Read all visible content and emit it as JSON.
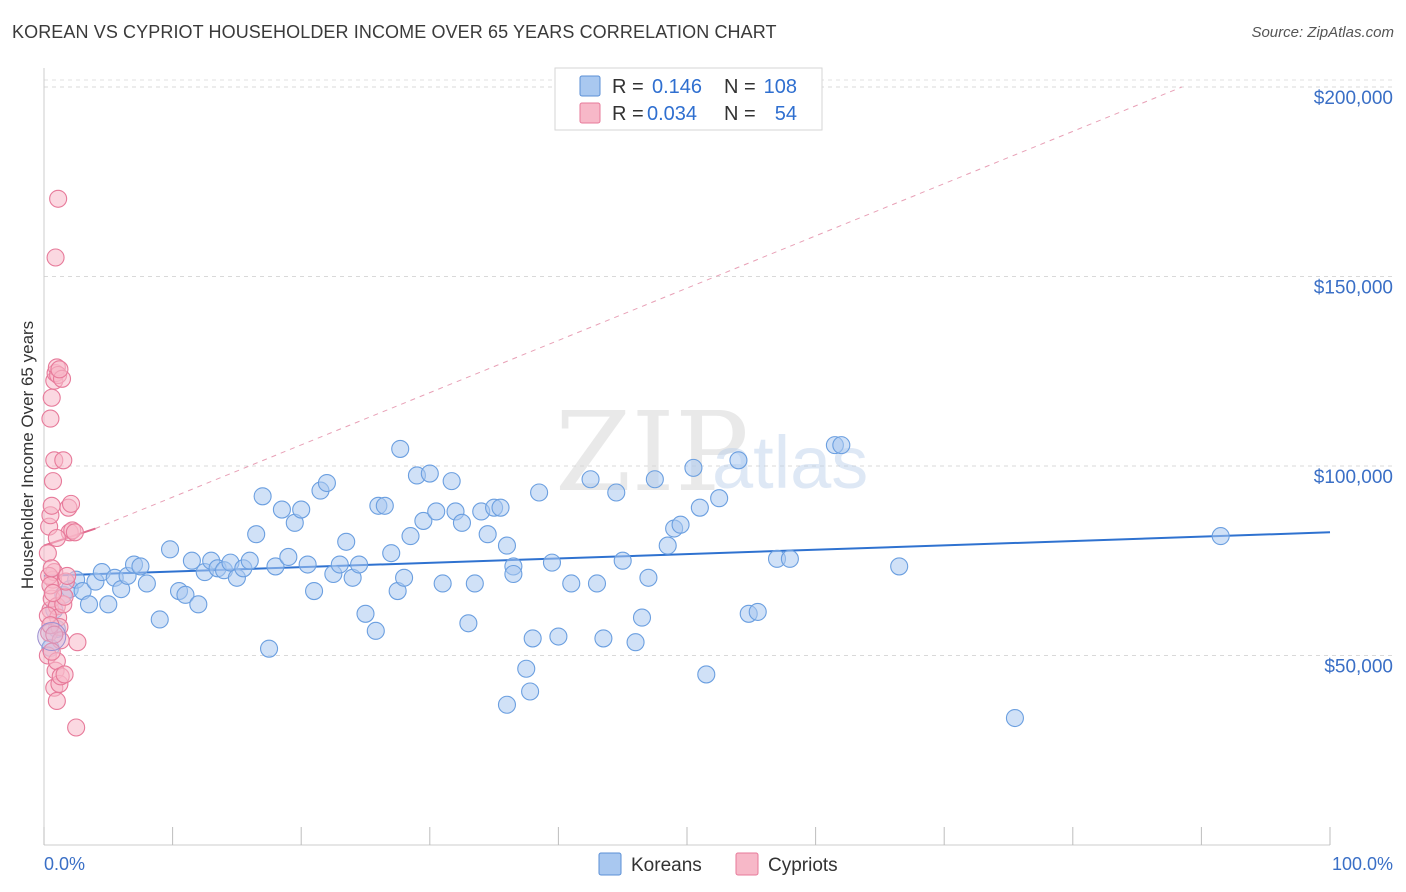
{
  "title": "KOREAN VS CYPRIOT HOUSEHOLDER INCOME OVER 65 YEARS CORRELATION CHART",
  "source": "Source: ZipAtlas.com",
  "watermark": {
    "zip": "ZIP",
    "atlas": "atlas"
  },
  "legend": {
    "rows": [
      {
        "r_label": "R =",
        "r_value": "0.146",
        "n_label": "N =",
        "n_value": "108",
        "color": "#a9c8f0",
        "edge": "#5b8fd6"
      },
      {
        "r_label": "R =",
        "r_value": "0.034",
        "n_label": "N =",
        "n_value": "54",
        "color": "#f7b8c8",
        "edge": "#e77a9a"
      }
    ]
  },
  "bottom_legend": [
    {
      "label": "Koreans",
      "color": "#a9c8f0",
      "edge": "#5b8fd6"
    },
    {
      "label": "Cypriots",
      "color": "#f7b8c8",
      "edge": "#e77a9a"
    }
  ],
  "chart_data": {
    "type": "scatter",
    "title": "KOREAN VS CYPRIOT HOUSEHOLDER INCOME OVER 65 YEARS CORRELATION CHART",
    "xlabel": "",
    "ylabel": "Householder Income Over 65 years",
    "xlim": [
      0,
      100
    ],
    "ylim": [
      0,
      205000
    ],
    "x_tick_labels": [
      "0.0%",
      "100.0%"
    ],
    "y_ticks": [
      50000,
      100000,
      150000,
      200000
    ],
    "y_tick_labels": [
      "$50,000",
      "$100,000",
      "$150,000",
      "$200,000"
    ],
    "grid": true,
    "series": [
      {
        "name": "Koreans",
        "color": "#6b9fe0",
        "fill": "#a9c8f0",
        "trend": {
          "x": [
            0,
            100
          ],
          "y": [
            71000,
            82500
          ],
          "style": "solid",
          "color": "#2f72d0"
        },
        "points": [
          [
            0.5,
            52000
          ],
          [
            0.8,
            62000
          ],
          [
            1.0,
            57000
          ],
          [
            1.5,
            66000
          ],
          [
            2.0,
            67500
          ],
          [
            2.5,
            70000
          ],
          [
            3.0,
            67000
          ],
          [
            3.5,
            63500
          ],
          [
            4.0,
            69500
          ],
          [
            4.5,
            72000
          ],
          [
            5.0,
            63500
          ],
          [
            5.5,
            70500
          ],
          [
            6.0,
            67500
          ],
          [
            6.5,
            71000
          ],
          [
            7.0,
            74000
          ],
          [
            7.5,
            73500
          ],
          [
            8.0,
            69000
          ],
          [
            9.0,
            59500
          ],
          [
            9.8,
            78000
          ],
          [
            10.5,
            67000
          ],
          [
            11.0,
            66000
          ],
          [
            11.5,
            75000
          ],
          [
            12.0,
            63500
          ],
          [
            12.5,
            72000
          ],
          [
            13.0,
            75000
          ],
          [
            13.5,
            73000
          ],
          [
            14.0,
            72500
          ],
          [
            14.5,
            74500
          ],
          [
            15.0,
            70500
          ],
          [
            15.5,
            73000
          ],
          [
            16.0,
            75000
          ],
          [
            16.5,
            82000
          ],
          [
            17.0,
            92000
          ],
          [
            17.5,
            51800
          ],
          [
            18.0,
            73500
          ],
          [
            18.5,
            88500
          ],
          [
            19.0,
            76000
          ],
          [
            19.5,
            85000
          ],
          [
            20.0,
            88500
          ],
          [
            20.5,
            74000
          ],
          [
            21.0,
            67000
          ],
          [
            21.5,
            93500
          ],
          [
            22.0,
            95500
          ],
          [
            22.5,
            71500
          ],
          [
            23.0,
            74000
          ],
          [
            23.5,
            80000
          ],
          [
            24.0,
            70500
          ],
          [
            24.5,
            74000
          ],
          [
            25.0,
            61000
          ],
          [
            25.8,
            56500
          ],
          [
            26.0,
            89500
          ],
          [
            26.5,
            89500
          ],
          [
            27.0,
            77000
          ],
          [
            27.5,
            67000
          ],
          [
            27.7,
            104500
          ],
          [
            28.0,
            70500
          ],
          [
            28.5,
            81500
          ],
          [
            29.0,
            97500
          ],
          [
            29.5,
            85500
          ],
          [
            30.0,
            98000
          ],
          [
            30.5,
            88000
          ],
          [
            31.0,
            69000
          ],
          [
            31.7,
            96000
          ],
          [
            32.0,
            88000
          ],
          [
            32.5,
            85000
          ],
          [
            33.0,
            58500
          ],
          [
            33.5,
            69000
          ],
          [
            34.0,
            88000
          ],
          [
            34.5,
            82000
          ],
          [
            35.0,
            89000
          ],
          [
            35.5,
            89000
          ],
          [
            36.0,
            79000
          ],
          [
            36.5,
            73500
          ],
          [
            36.5,
            71500
          ],
          [
            36.0,
            37000
          ],
          [
            37.5,
            46500
          ],
          [
            37.8,
            40500
          ],
          [
            38.0,
            54500
          ],
          [
            38.5,
            93000
          ],
          [
            39.5,
            74500
          ],
          [
            40.0,
            55000
          ],
          [
            41.0,
            69000
          ],
          [
            42.5,
            96500
          ],
          [
            43.0,
            69000
          ],
          [
            43.5,
            54500
          ],
          [
            44.5,
            93000
          ],
          [
            45.0,
            75000
          ],
          [
            46.0,
            53500
          ],
          [
            46.5,
            60000
          ],
          [
            47.0,
            70500
          ],
          [
            47.5,
            96500
          ],
          [
            48.5,
            79000
          ],
          [
            49.0,
            83500
          ],
          [
            49.5,
            84500
          ],
          [
            50.5,
            99500
          ],
          [
            51.0,
            89000
          ],
          [
            51.5,
            45000
          ],
          [
            52.5,
            91500
          ],
          [
            54.0,
            101500
          ],
          [
            54.8,
            61000
          ],
          [
            55.5,
            61500
          ],
          [
            57.0,
            75500
          ],
          [
            58.0,
            75500
          ],
          [
            61.5,
            105500
          ],
          [
            62.0,
            105500
          ],
          [
            66.5,
            73500
          ],
          [
            75.5,
            33500
          ],
          [
            91.5,
            81500
          ]
        ]
      },
      {
        "name": "Cypriots",
        "color": "#e77a9a",
        "fill": "#f7b8c8",
        "trend": {
          "x": [
            0,
            4
          ],
          "y": [
            79000,
            83500
          ],
          "style": "solid",
          "color": "#e06a8e",
          "extension": {
            "x": [
              4,
              88.5
            ],
            "y": [
              83500,
              200000
            ],
            "style": "dashed"
          }
        },
        "points": [
          [
            0.3,
            50000
          ],
          [
            0.4,
            56000
          ],
          [
            0.5,
            62000
          ],
          [
            0.6,
            65000
          ],
          [
            0.7,
            70000
          ],
          [
            0.8,
            72000
          ],
          [
            0.3,
            77000
          ],
          [
            0.4,
            84000
          ],
          [
            0.5,
            87000
          ],
          [
            0.6,
            89500
          ],
          [
            0.7,
            96000
          ],
          [
            0.8,
            101500
          ],
          [
            0.5,
            112500
          ],
          [
            0.6,
            118000
          ],
          [
            0.8,
            122500
          ],
          [
            0.9,
            124500
          ],
          [
            1.0,
            126000
          ],
          [
            1.1,
            124000
          ],
          [
            1.0,
            63000
          ],
          [
            1.1,
            60000
          ],
          [
            1.2,
            57500
          ],
          [
            1.3,
            54000
          ],
          [
            0.9,
            46000
          ],
          [
            1.0,
            48500
          ],
          [
            0.8,
            41500
          ],
          [
            1.0,
            38000
          ],
          [
            1.2,
            42500
          ],
          [
            1.3,
            44500
          ],
          [
            1.5,
            63500
          ],
          [
            1.6,
            65500
          ],
          [
            1.7,
            69500
          ],
          [
            1.8,
            71000
          ],
          [
            2.0,
            82500
          ],
          [
            2.2,
            83000
          ],
          [
            2.5,
            31000
          ],
          [
            1.9,
            89000
          ],
          [
            2.1,
            90000
          ],
          [
            1.5,
            101500
          ],
          [
            1.4,
            123000
          ],
          [
            1.2,
            125500
          ],
          [
            0.9,
            155000
          ],
          [
            1.1,
            170500
          ],
          [
            0.4,
            71000
          ],
          [
            0.6,
            73000
          ],
          [
            0.5,
            68500
          ],
          [
            0.7,
            66500
          ],
          [
            0.3,
            60500
          ],
          [
            0.5,
            58000
          ],
          [
            0.6,
            51000
          ],
          [
            0.8,
            55500
          ],
          [
            1.0,
            81000
          ],
          [
            2.4,
            82500
          ],
          [
            2.6,
            53500
          ],
          [
            1.6,
            45000
          ]
        ]
      }
    ]
  }
}
